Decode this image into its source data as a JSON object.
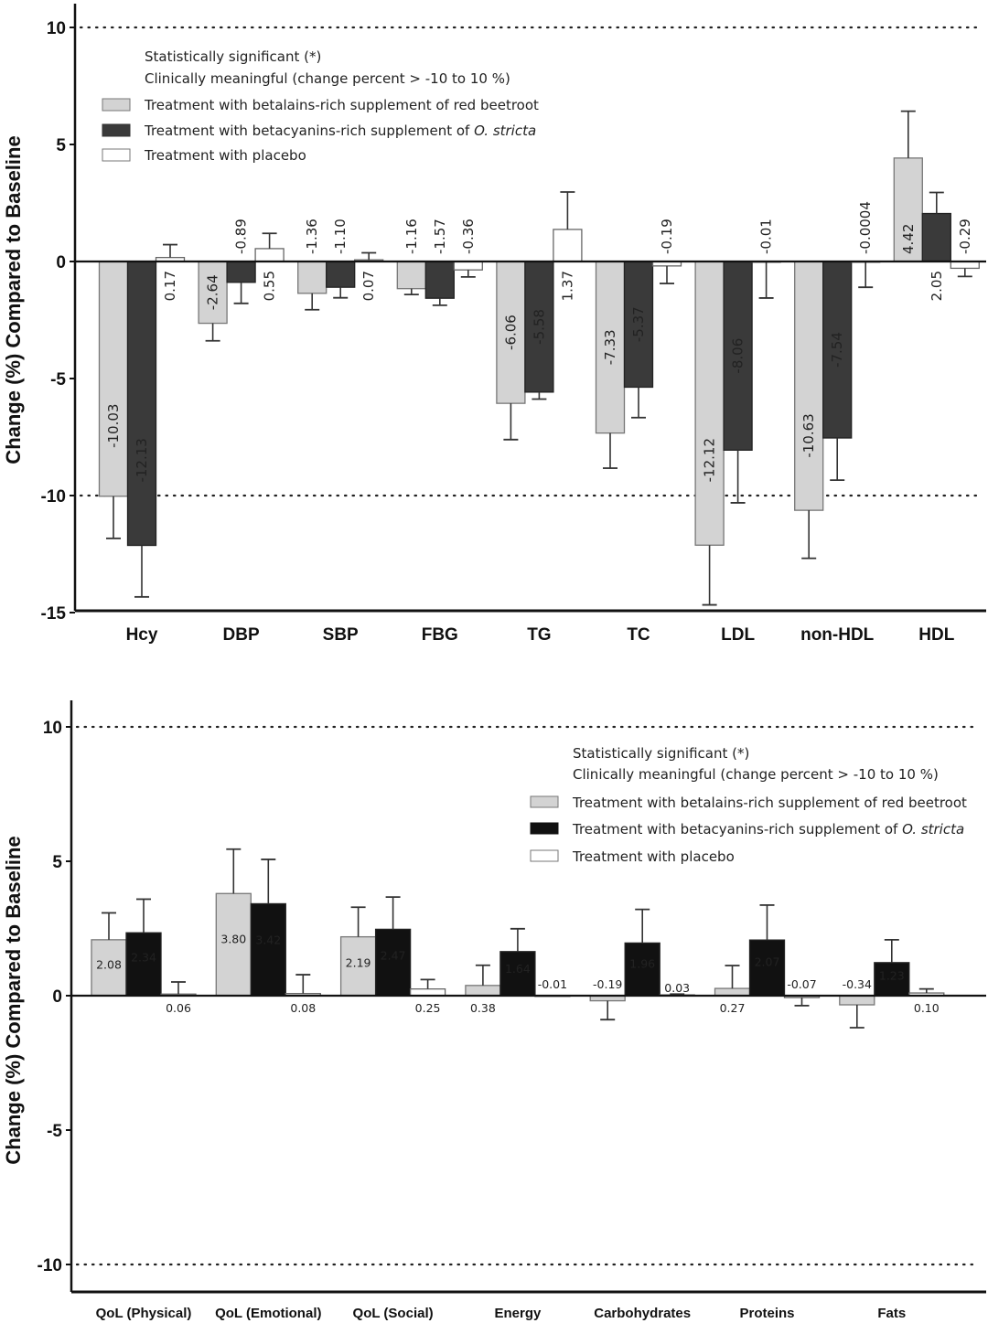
{
  "chart_data": [
    {
      "type": "bar",
      "title": "",
      "ylabel": "Change (%) Compared to Baseline",
      "xlabel": "",
      "ylim": [
        -15,
        10
      ],
      "yticks": [
        10,
        5,
        0,
        -5,
        -10,
        -15
      ],
      "reference_lines": [
        10,
        -10
      ],
      "grid": false,
      "legend_position": "top-center",
      "legend_notes": [
        "Statistically significant (*)",
        "Clinically meaningful (change percent > -10 to 10 %)"
      ],
      "categories": [
        "Hcy",
        "DBP",
        "SBP",
        "FBG",
        "TG",
        "TC",
        "LDL",
        "non-HDL",
        "HDL"
      ],
      "series": [
        {
          "name": "Treatment with betalains-rich supplement of red beetroot",
          "color": "#d3d3d3",
          "values": [
            -10.03,
            -2.64,
            -1.36,
            -1.16,
            -6.06,
            -7.33,
            -12.12,
            -10.63,
            4.42
          ],
          "labels": [
            "-10.03",
            "-2.64",
            "-1.36",
            "-1.16",
            "-6.06",
            "-7.33",
            "-12.12",
            "-10.63",
            "4.42"
          ],
          "errors": [
            1.8,
            0.75,
            0.7,
            0.25,
            1.55,
            1.5,
            2.55,
            2.05,
            2.0
          ]
        },
        {
          "name": "Treatment with betacyanins-rich supplement of O. stricta",
          "color": "#3a3a3a",
          "values": [
            -12.13,
            -0.89,
            -1.1,
            -1.57,
            -5.58,
            -5.37,
            -8.06,
            -7.54,
            2.05
          ],
          "labels": [
            "-12.13",
            "-0.89",
            "-1.10",
            "-1.57",
            "-5.58",
            "-5.37",
            "-8.06",
            "-7.54",
            "2.05"
          ],
          "errors": [
            2.2,
            0.9,
            0.45,
            0.3,
            0.3,
            1.3,
            2.25,
            1.8,
            0.9
          ]
        },
        {
          "name": "Treatment with placebo",
          "color": "#ffffff",
          "values": [
            0.17,
            0.55,
            0.07,
            -0.36,
            1.37,
            -0.19,
            -0.01,
            -0.0004,
            -0.29
          ],
          "labels": [
            "0.17",
            "0.55",
            "0.07",
            "-0.36",
            "1.37",
            "-0.19",
            "-0.01",
            "-0.0004",
            "-0.29"
          ],
          "errors": [
            0.55,
            0.65,
            0.3,
            0.3,
            1.6,
            0.75,
            1.55,
            1.1,
            0.35
          ]
        }
      ]
    },
    {
      "type": "bar",
      "title": "",
      "ylabel": "Change (%) Compared to Baseline",
      "xlabel": "",
      "ylim": [
        -11,
        11
      ],
      "yticks": [
        10,
        5,
        0,
        -5,
        -10
      ],
      "reference_lines": [
        10,
        -10
      ],
      "grid": false,
      "legend_position": "top-right",
      "legend_notes": [
        "Statistically significant (*)",
        "Clinically meaningful (change percent > -10 to 10 %)"
      ],
      "categories": [
        "QoL (Physical)",
        "QoL (Emotional)",
        "QoL (Social)",
        "Energy",
        "Carbohydrates",
        "Proteins",
        "Fats"
      ],
      "series": [
        {
          "name": "Treatment with betalains-rich supplement of red beetroot",
          "color": "#d3d3d3",
          "values": [
            2.08,
            3.8,
            2.19,
            0.38,
            -0.19,
            0.27,
            -0.34
          ],
          "labels": [
            "2.08",
            "3.80",
            "2.19",
            "0.38",
            "-0.19",
            "0.27",
            "-0.34"
          ],
          "errors": [
            1.0,
            1.65,
            1.1,
            0.75,
            0.7,
            0.85,
            0.85
          ]
        },
        {
          "name": "Treatment with betacyanins-rich supplement of O. stricta",
          "color": "#111111",
          "values": [
            2.34,
            3.42,
            2.47,
            1.64,
            1.96,
            2.07,
            1.23
          ],
          "labels": [
            "2.34",
            "3.42",
            "2.47",
            "1.64",
            "1.96",
            "2.07",
            "1.23"
          ],
          "errors": [
            1.25,
            1.65,
            1.2,
            0.85,
            1.25,
            1.3,
            0.85
          ]
        },
        {
          "name": "Treatment with placebo",
          "color": "#ffffff",
          "values": [
            0.06,
            0.08,
            0.25,
            -0.01,
            0.03,
            -0.07,
            0.1
          ],
          "labels": [
            "0.06",
            "0.08",
            "0.25",
            "-0.01",
            "0.03",
            "-0.07",
            "0.10"
          ],
          "errors": [
            0.45,
            0.7,
            0.35,
            0.0,
            0.03,
            0.3,
            0.15
          ]
        }
      ]
    }
  ],
  "legend": {
    "note_significant": "Statistically significant (*)",
    "note_clinical": "Clinically meaningful (change percent > -10 to 10 %)",
    "beetroot_prefix": "Treatment with betalains-rich supplement of red beetroot",
    "ostricta_prefix": "Treatment with betacyanins-rich supplement of ",
    "ostricta_italic": "O. stricta",
    "placebo": "Treatment with placebo"
  }
}
